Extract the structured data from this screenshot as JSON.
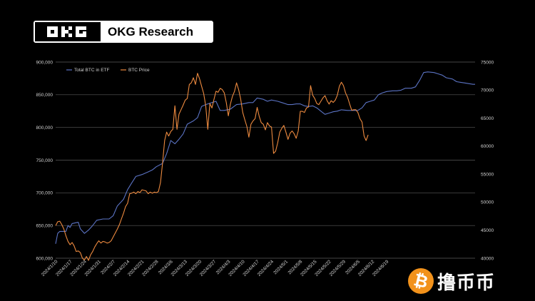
{
  "header": {
    "brand_label": "OKG Research"
  },
  "watermark": {
    "text": "撸币币"
  },
  "colors": {
    "btc_in_etf": "#5b73c4",
    "btc_price": "#ed8a3f",
    "background": "#000000",
    "grid": "#5a5a5a"
  },
  "chart_data": {
    "type": "line",
    "legend_position": "top-left",
    "grid": true,
    "x_tick_labels": [
      "2024/1/10",
      "2024/1/17",
      "2024/1/24",
      "2024/1/31",
      "2024/2/7",
      "2024/2/14",
      "2024/2/21",
      "2024/2/28",
      "2024/3/6",
      "2024/3/13",
      "2024/3/20",
      "2024/3/27",
      "2024/4/3",
      "2024/4/10",
      "2024/4/17",
      "2024/4/24",
      "2024/5/1",
      "2024/5/8",
      "2024/5/15",
      "2024/5/22",
      "2024/5/29",
      "2024/6/5",
      "2024/6/12",
      "2024/6/19"
    ],
    "y_left": {
      "range": [
        600000,
        900000
      ],
      "ticks": [
        "600,000",
        "650,000",
        "700,000",
        "750,000",
        "800,000",
        "850,000",
        "900,000"
      ]
    },
    "y_right": {
      "range": [
        40000,
        75000
      ],
      "ticks": [
        "40000",
        "45000",
        "50000",
        "55000",
        "60000",
        "65000",
        "70000",
        "75000"
      ]
    },
    "series": [
      {
        "name": "Total BTC in ETF",
        "axis": "left",
        "color": "#5b73c4",
        "points": [
          [
            0,
            622000
          ],
          [
            1,
            638000
          ],
          [
            2,
            641000
          ],
          [
            3,
            641000
          ],
          [
            5,
            641000
          ],
          [
            6,
            650000
          ],
          [
            7,
            647000
          ],
          [
            8,
            653000
          ],
          [
            11,
            655000
          ],
          [
            12,
            645000
          ],
          [
            14,
            638000
          ],
          [
            16,
            643000
          ],
          [
            18,
            650000
          ],
          [
            20,
            658000
          ],
          [
            23,
            660000
          ],
          [
            26,
            660000
          ],
          [
            28,
            665000
          ],
          [
            30,
            680000
          ],
          [
            33,
            690000
          ],
          [
            35,
            705000
          ],
          [
            37,
            715000
          ],
          [
            39,
            725000
          ],
          [
            42,
            728000
          ],
          [
            45,
            732000
          ],
          [
            47,
            735000
          ],
          [
            49,
            740000
          ],
          [
            52,
            745000
          ],
          [
            54,
            760000
          ],
          [
            56,
            780000
          ],
          [
            58,
            775000
          ],
          [
            60,
            782000
          ],
          [
            62,
            790000
          ],
          [
            64,
            805000
          ],
          [
            67,
            810000
          ],
          [
            69,
            815000
          ],
          [
            71,
            832000
          ],
          [
            73,
            835000
          ],
          [
            76,
            838000
          ],
          [
            78,
            840000
          ],
          [
            80,
            826000
          ],
          [
            82,
            826000
          ],
          [
            85,
            828000
          ],
          [
            88,
            835000
          ],
          [
            91,
            836000
          ],
          [
            94,
            838000
          ],
          [
            96,
            838000
          ],
          [
            98,
            845000
          ],
          [
            101,
            843000
          ],
          [
            103,
            840000
          ],
          [
            105,
            842000
          ],
          [
            108,
            840000
          ],
          [
            110,
            838000
          ],
          [
            113,
            835000
          ],
          [
            115,
            835000
          ],
          [
            117,
            836000
          ],
          [
            119,
            836000
          ],
          [
            121,
            833000
          ],
          [
            123,
            832000
          ],
          [
            125,
            833000
          ],
          [
            127,
            830000
          ],
          [
            129,
            825000
          ],
          [
            131,
            820000
          ],
          [
            133,
            822000
          ],
          [
            135,
            824000
          ],
          [
            137,
            825000
          ],
          [
            139,
            827000
          ],
          [
            142,
            826000
          ],
          [
            144,
            826000
          ],
          [
            147,
            826000
          ],
          [
            149,
            830000
          ],
          [
            151,
            838000
          ],
          [
            153,
            840000
          ],
          [
            155,
            842000
          ],
          [
            157,
            850000
          ],
          [
            159,
            853000
          ],
          [
            161,
            855000
          ],
          [
            164,
            856000
          ],
          [
            166,
            856000
          ],
          [
            168,
            857000
          ],
          [
            170,
            860000
          ],
          [
            173,
            860000
          ],
          [
            175,
            862000
          ],
          [
            177,
            872000
          ],
          [
            179,
            884000
          ],
          [
            181,
            885000
          ],
          [
            184,
            884000
          ],
          [
            186,
            882000
          ],
          [
            188,
            880000
          ],
          [
            190,
            876000
          ],
          [
            193,
            874000
          ],
          [
            195,
            870000
          ],
          [
            197,
            869000
          ],
          [
            199,
            868000
          ],
          [
            201,
            867000
          ],
          [
            203,
            866000
          ],
          [
            204,
            866000
          ]
        ]
      },
      {
        "name": "BTC Price",
        "axis": "right",
        "color": "#ed8a3f",
        "points": [
          [
            0,
            45800
          ],
          [
            1,
            46500
          ],
          [
            2,
            46600
          ],
          [
            3,
            46000
          ],
          [
            4,
            45200
          ],
          [
            5,
            44000
          ],
          [
            6,
            43000
          ],
          [
            7,
            42400
          ],
          [
            8,
            42800
          ],
          [
            9,
            42200
          ],
          [
            10,
            41200
          ],
          [
            11,
            41300
          ],
          [
            12,
            41000
          ],
          [
            13,
            40000
          ],
          [
            14,
            39700
          ],
          [
            15,
            40300
          ],
          [
            16,
            39600
          ],
          [
            17,
            40600
          ],
          [
            18,
            41200
          ],
          [
            19,
            42000
          ],
          [
            20,
            42600
          ],
          [
            21,
            43100
          ],
          [
            22,
            42700
          ],
          [
            23,
            43000
          ],
          [
            24,
            42900
          ],
          [
            25,
            42700
          ],
          [
            26,
            42800
          ],
          [
            27,
            43100
          ],
          [
            28,
            43800
          ],
          [
            29,
            44500
          ],
          [
            30,
            45200
          ],
          [
            31,
            46000
          ],
          [
            32,
            47000
          ],
          [
            33,
            48000
          ],
          [
            34,
            49200
          ],
          [
            35,
            49800
          ],
          [
            36,
            51500
          ],
          [
            37,
            51600
          ],
          [
            38,
            51800
          ],
          [
            39,
            51500
          ],
          [
            40,
            51900
          ],
          [
            41,
            51700
          ],
          [
            42,
            52200
          ],
          [
            43,
            52100
          ],
          [
            44,
            52000
          ],
          [
            45,
            51500
          ],
          [
            46,
            51800
          ],
          [
            47,
            51600
          ],
          [
            48,
            51800
          ],
          [
            49,
            51700
          ],
          [
            50,
            51900
          ],
          [
            51,
            53500
          ],
          [
            52,
            57000
          ],
          [
            53,
            61000
          ],
          [
            54,
            62500
          ],
          [
            55,
            61800
          ],
          [
            56,
            62600
          ],
          [
            57,
            63000
          ],
          [
            58,
            67200
          ],
          [
            59,
            63000
          ],
          [
            60,
            65700
          ],
          [
            61,
            66500
          ],
          [
            62,
            67300
          ],
          [
            63,
            68200
          ],
          [
            64,
            68500
          ],
          [
            65,
            71000
          ],
          [
            66,
            71300
          ],
          [
            67,
            72200
          ],
          [
            68,
            71000
          ],
          [
            69,
            73000
          ],
          [
            70,
            72000
          ],
          [
            71,
            70700
          ],
          [
            72,
            69400
          ],
          [
            73,
            67200
          ],
          [
            74,
            63000
          ],
          [
            75,
            67600
          ],
          [
            76,
            66800
          ],
          [
            77,
            68300
          ],
          [
            78,
            69800
          ],
          [
            79,
            69600
          ],
          [
            80,
            70300
          ],
          [
            81,
            70100
          ],
          [
            82,
            69500
          ],
          [
            83,
            67800
          ],
          [
            84,
            65400
          ],
          [
            85,
            67500
          ],
          [
            86,
            68900
          ],
          [
            87,
            69800
          ],
          [
            88,
            71300
          ],
          [
            89,
            70100
          ],
          [
            90,
            68400
          ],
          [
            91,
            66000
          ],
          [
            92,
            64700
          ],
          [
            93,
            63500
          ],
          [
            94,
            61600
          ],
          [
            95,
            63900
          ],
          [
            96,
            64500
          ],
          [
            97,
            64900
          ],
          [
            98,
            66900
          ],
          [
            99,
            65300
          ],
          [
            100,
            64200
          ],
          [
            101,
            63900
          ],
          [
            102,
            62900
          ],
          [
            103,
            64200
          ],
          [
            104,
            63600
          ],
          [
            105,
            63400
          ],
          [
            106,
            58700
          ],
          [
            107,
            59100
          ],
          [
            108,
            60600
          ],
          [
            109,
            62500
          ],
          [
            110,
            63200
          ],
          [
            111,
            63700
          ],
          [
            112,
            62500
          ],
          [
            113,
            61200
          ],
          [
            114,
            62300
          ],
          [
            115,
            62700
          ],
          [
            116,
            62200
          ],
          [
            117,
            61400
          ],
          [
            118,
            62700
          ],
          [
            119,
            66200
          ],
          [
            120,
            66200
          ],
          [
            121,
            66000
          ],
          [
            122,
            66800
          ],
          [
            123,
            67000
          ],
          [
            124,
            70800
          ],
          [
            125,
            69100
          ],
          [
            126,
            68500
          ],
          [
            127,
            67600
          ],
          [
            128,
            67400
          ],
          [
            129,
            68000
          ],
          [
            130,
            68600
          ],
          [
            131,
            69000
          ],
          [
            132,
            68100
          ],
          [
            133,
            67500
          ],
          [
            134,
            68100
          ],
          [
            135,
            67800
          ],
          [
            136,
            68200
          ],
          [
            137,
            69100
          ],
          [
            138,
            70700
          ],
          [
            139,
            71400
          ],
          [
            140,
            70800
          ],
          [
            141,
            69500
          ],
          [
            142,
            68700
          ],
          [
            143,
            67500
          ],
          [
            144,
            66400
          ],
          [
            145,
            66500
          ],
          [
            146,
            66500
          ],
          [
            147,
            66000
          ],
          [
            148,
            64900
          ],
          [
            149,
            64300
          ],
          [
            150,
            61800
          ],
          [
            151,
            61000
          ],
          [
            152,
            62000
          ]
        ]
      }
    ]
  }
}
